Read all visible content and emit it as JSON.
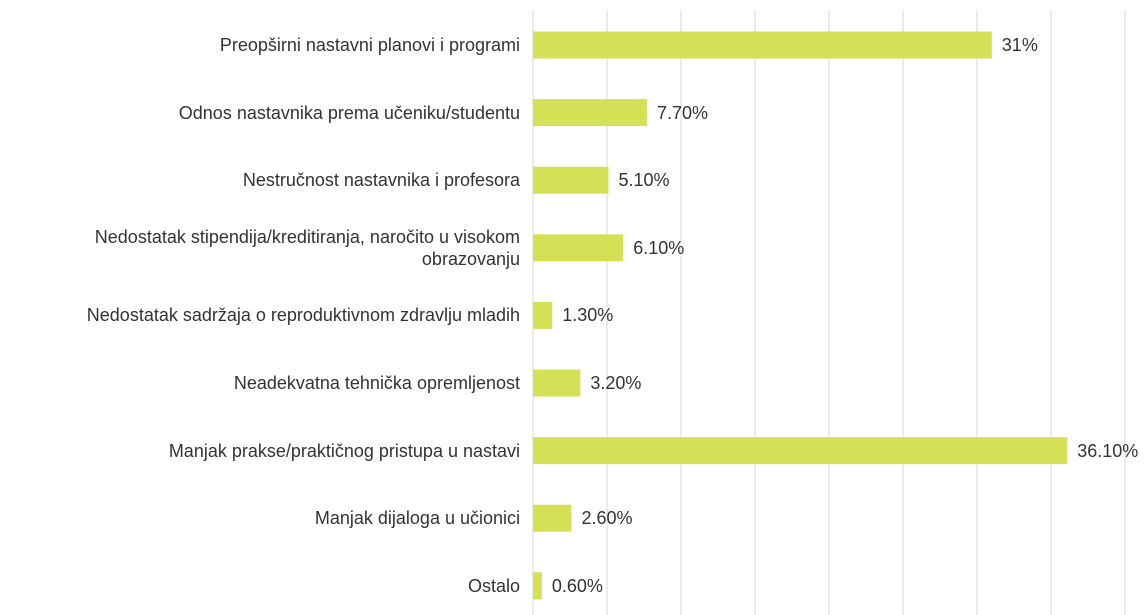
{
  "chart_data": {
    "type": "bar",
    "categories": [
      "Preopširni nastavni planovi i programi",
      "Odnos nastavnika prema učeniku/studentu",
      "Nestručnost nastavnika i profesora",
      "Nedostatak stipendija/kreditiranja, naročito u visokom obrazovanju",
      "Nedostatak sadržaja o reproduktivnom zdravlju mladih",
      "Neadekvatna tehnička opremljenost",
      "Manjak prakse/praktičnog pristupa u nastavi",
      "Manjak dijaloga u učionici",
      "Ostalo"
    ],
    "values": [
      31,
      7.7,
      5.1,
      6.1,
      1.3,
      3.2,
      36.1,
      2.6,
      0.6
    ],
    "value_labels": [
      "31%",
      "7.70%",
      "5.10%",
      "6.10%",
      "1.30%",
      "3.20%",
      "36.10%",
      "2.60%",
      "0.60%"
    ],
    "color": "#d4e157",
    "xlim": [
      0,
      40
    ],
    "xticks": [
      0,
      5,
      10,
      15,
      20,
      25,
      30,
      35,
      40
    ],
    "grid": true
  }
}
